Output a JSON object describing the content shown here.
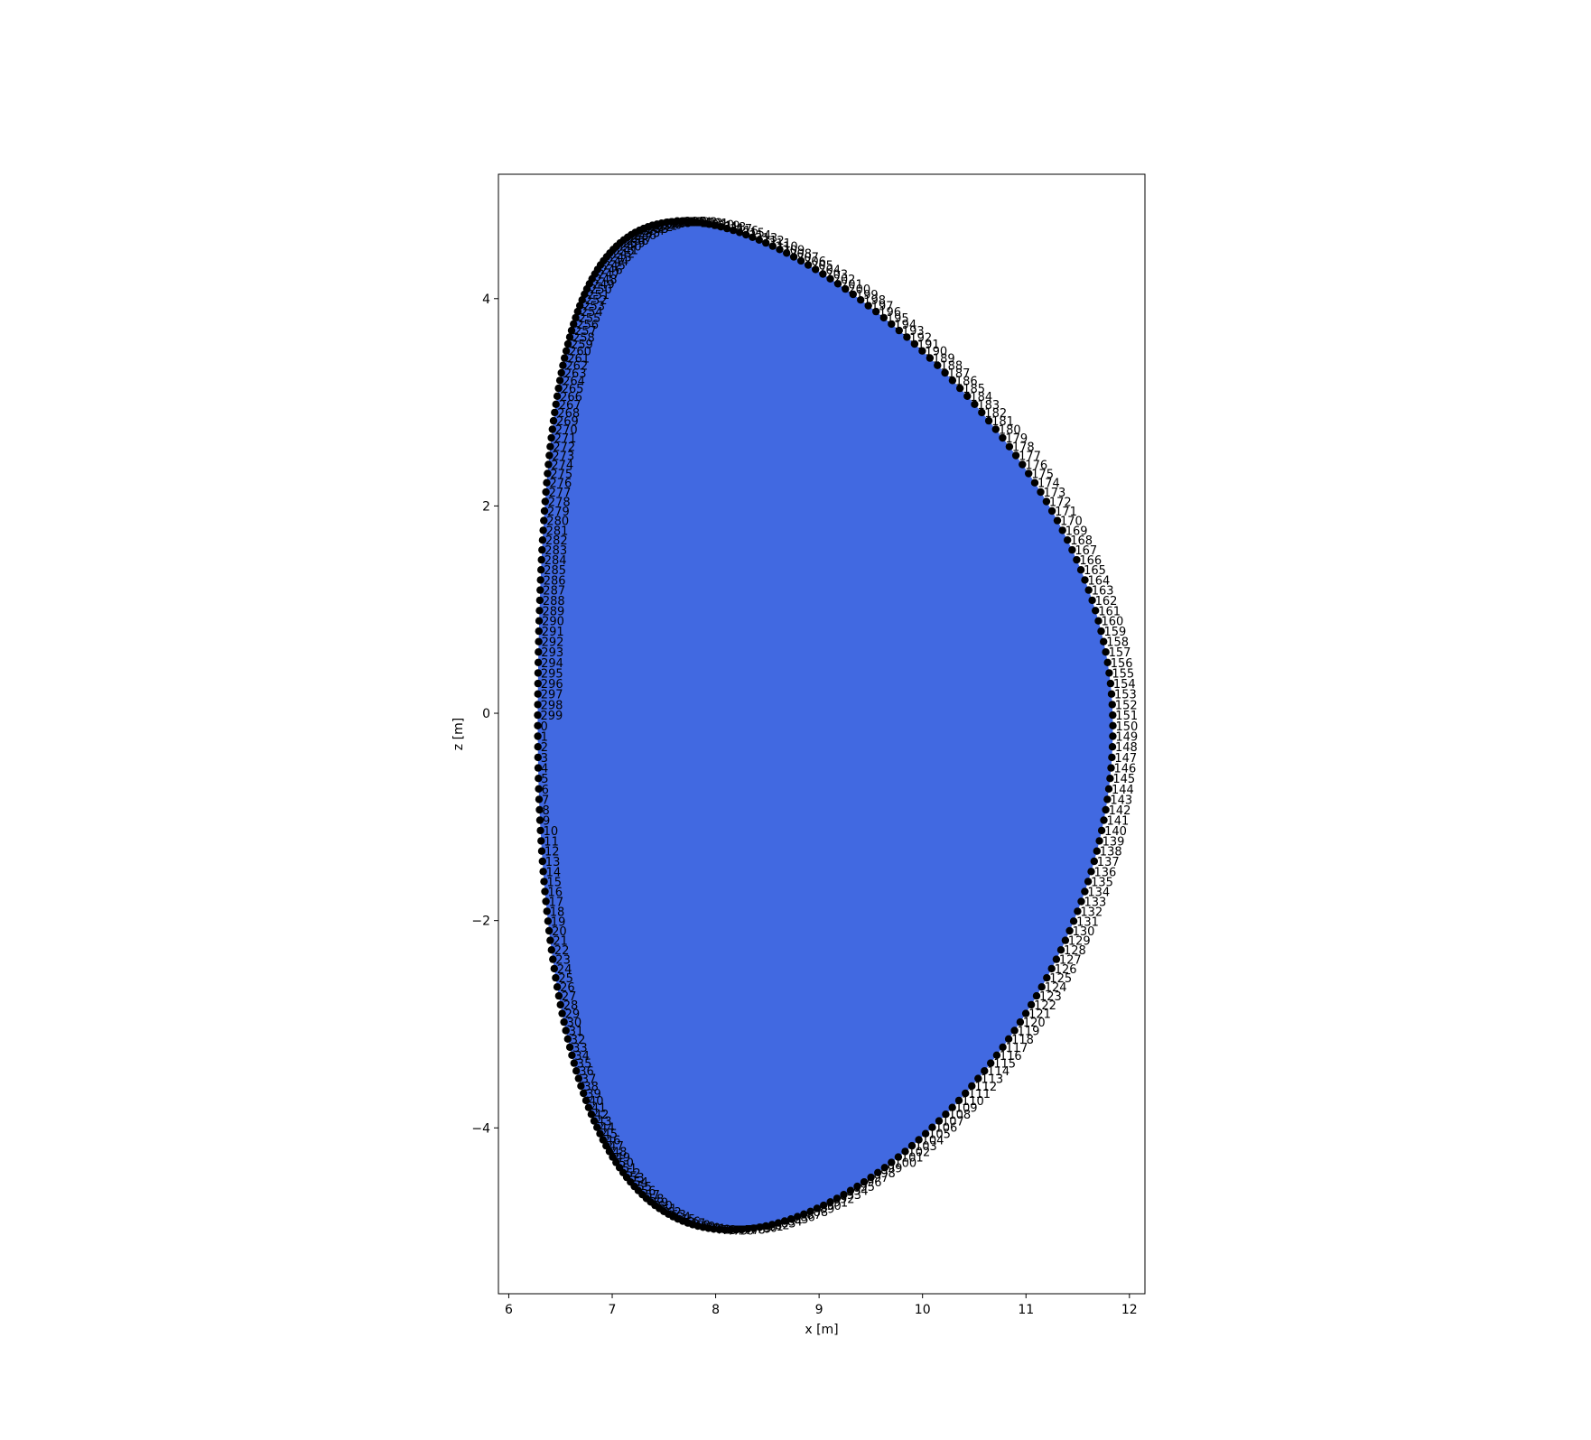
{
  "chart_data": {
    "type": "scatter",
    "title": "",
    "xlabel": "x [m]",
    "ylabel": "z [m]",
    "xlim": [
      5.9,
      12.15
    ],
    "ylim": [
      -5.6,
      5.2
    ],
    "xticks": [
      6,
      7,
      8,
      9,
      10,
      11,
      12
    ],
    "yticks": [
      -4,
      -2,
      0,
      2,
      4
    ],
    "grid": false,
    "legend": "none",
    "fill_color": "#4169e1",
    "marker_color": "#000000",
    "point_count": 300,
    "first_label": 0,
    "label_step": 1,
    "shape": {
      "r0": 9.06,
      "a": 2.78,
      "kappa": 1.75,
      "delta_upper": 0.5,
      "delta_lower": 0.33,
      "z_shift": -0.12,
      "start_angle_deg": 180,
      "direction": "counterclockwise"
    }
  }
}
